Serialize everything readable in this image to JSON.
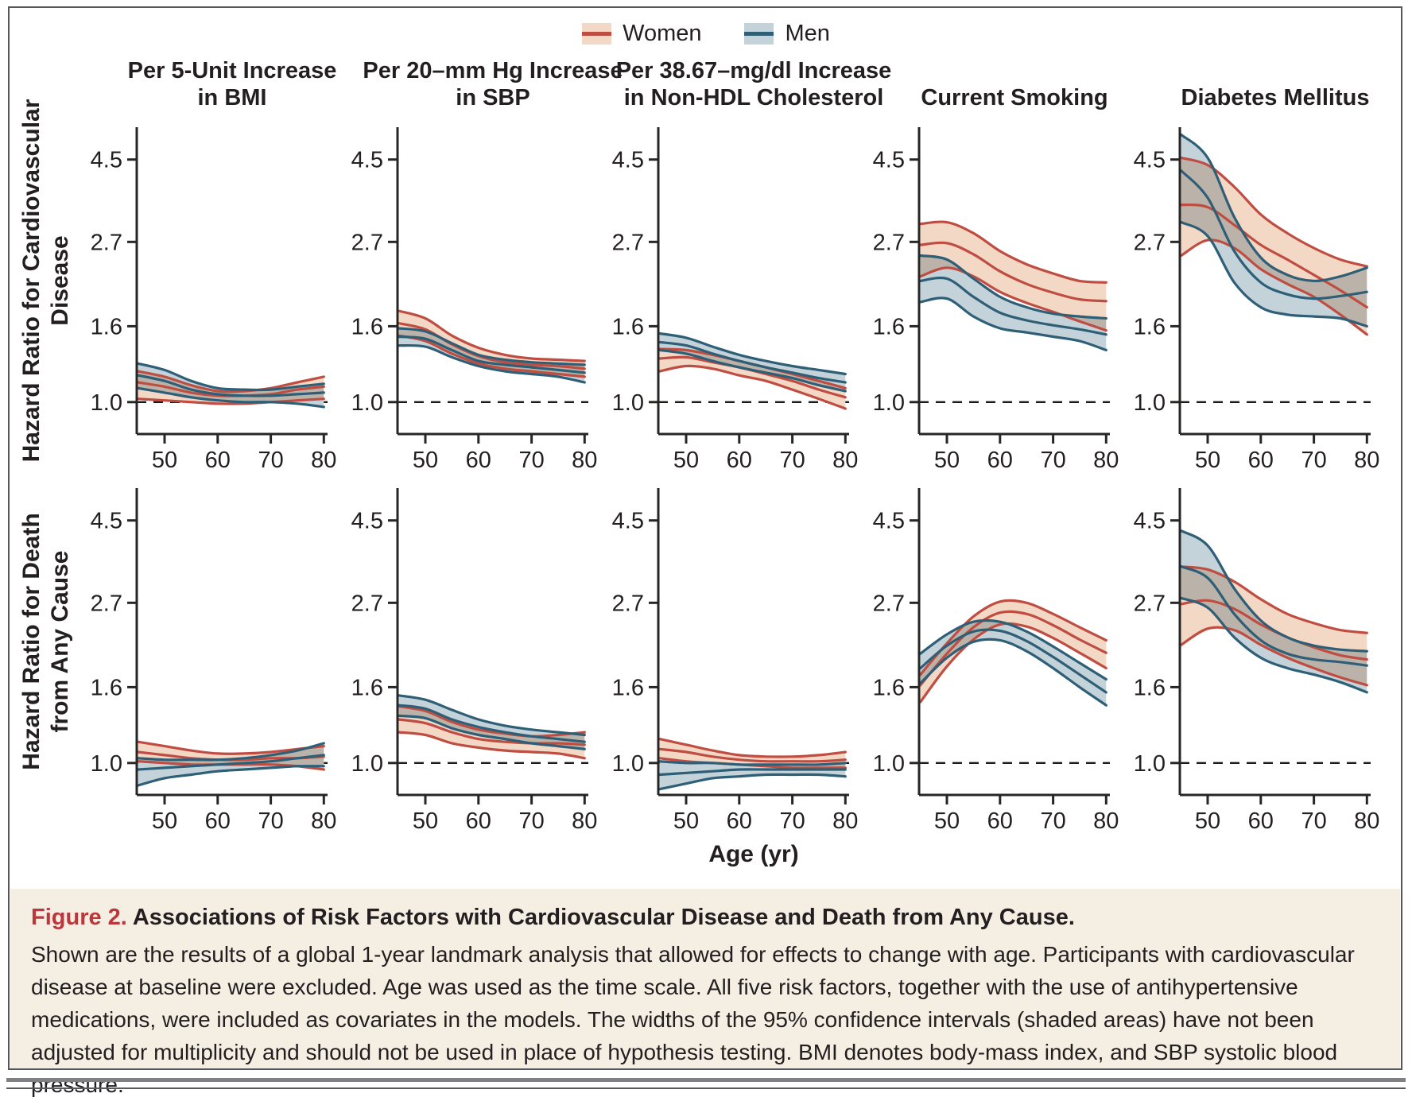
{
  "legend": {
    "women": "Women",
    "men": "Men"
  },
  "colors": {
    "women_line": "#bf4d42",
    "women_fill": "#f3d8c6",
    "men_line": "#2e5f77",
    "men_fill": "#c4d3da",
    "reference_dash": "#1a1a18",
    "axis": "#262624",
    "text": "#231f20",
    "caption_bg": "#f4eee3",
    "figure_label_red": "#bb373c",
    "frame_gray": "#55565a"
  },
  "columns": [
    {
      "line1": "Per 5-Unit Increase",
      "line2": "in BMI"
    },
    {
      "line1": "Per 20–mm Hg Increase",
      "line2": "in SBP"
    },
    {
      "line1": "Per 38.67–mg/dl Increase",
      "line2": "in Non-HDL Cholesterol"
    },
    {
      "line1": "Current Smoking",
      "line2": ""
    },
    {
      "line1": "Diabetes Mellitus",
      "line2": ""
    }
  ],
  "rows": [
    {
      "line1": "Hazard Ratio for Cardiovascular",
      "line2": "Disease"
    },
    {
      "line1": "Hazard Ratio for Death",
      "line2": "from Any Cause"
    }
  ],
  "axis": {
    "xlabel": "Age (yr)",
    "xticks": [
      50,
      60,
      70,
      80
    ],
    "ytick_labels": [
      "1.0",
      "1.6",
      "2.7",
      "4.5"
    ],
    "ytick_values": [
      1.0,
      1.6,
      2.7,
      4.5
    ],
    "scale": "log",
    "ylim": [
      0.82,
      5.5
    ],
    "xlim": [
      44.75,
      80.7
    ],
    "reference_line": 1.0
  },
  "chart_data": [
    {
      "type": "area",
      "risk_factor": "Per 5-Unit Increase in BMI",
      "outcome": "Hazard Ratio for Cardiovascular Disease",
      "x": [
        45,
        50,
        55,
        60,
        65,
        70,
        75,
        80
      ],
      "series": [
        {
          "name": "Women",
          "center": [
            1.13,
            1.1,
            1.06,
            1.04,
            1.04,
            1.05,
            1.08,
            1.1
          ],
          "upper": [
            1.21,
            1.17,
            1.11,
            1.07,
            1.07,
            1.09,
            1.13,
            1.17
          ],
          "lower": [
            1.02,
            1.01,
            1.0,
            0.99,
            0.99,
            1.0,
            1.01,
            1.02
          ]
        },
        {
          "name": "Men",
          "center": [
            1.18,
            1.14,
            1.08,
            1.05,
            1.04,
            1.04,
            1.05,
            1.06
          ],
          "upper": [
            1.27,
            1.22,
            1.14,
            1.09,
            1.08,
            1.08,
            1.1,
            1.12
          ],
          "lower": [
            1.09,
            1.06,
            1.03,
            1.01,
            1.0,
            1.0,
            0.99,
            0.97
          ]
        }
      ]
    },
    {
      "type": "area",
      "risk_factor": "Per 20–mm Hg Increase in SBP",
      "outcome": "Hazard Ratio for Cardiovascular Disease",
      "x": [
        45,
        50,
        55,
        60,
        65,
        70,
        75,
        80
      ],
      "series": [
        {
          "name": "Women",
          "center": [
            1.63,
            1.57,
            1.43,
            1.33,
            1.28,
            1.26,
            1.25,
            1.23
          ],
          "upper": [
            1.76,
            1.68,
            1.51,
            1.4,
            1.34,
            1.31,
            1.3,
            1.29
          ],
          "lower": [
            1.51,
            1.46,
            1.35,
            1.27,
            1.23,
            1.21,
            1.19,
            1.17
          ]
        },
        {
          "name": "Men",
          "center": [
            1.5,
            1.48,
            1.38,
            1.29,
            1.26,
            1.24,
            1.22,
            1.2
          ],
          "upper": [
            1.58,
            1.55,
            1.44,
            1.34,
            1.3,
            1.28,
            1.27,
            1.26
          ],
          "lower": [
            1.42,
            1.41,
            1.32,
            1.25,
            1.21,
            1.19,
            1.17,
            1.13
          ]
        }
      ]
    },
    {
      "type": "area",
      "risk_factor": "Per 38.67–mg/dl Increase in Non-HDL Cholesterol",
      "outcome": "Hazard Ratio for Cardiovascular Disease",
      "x": [
        45,
        50,
        55,
        60,
        65,
        70,
        75,
        80
      ],
      "series": [
        {
          "name": "Women",
          "center": [
            1.31,
            1.32,
            1.28,
            1.24,
            1.19,
            1.14,
            1.08,
            1.03
          ],
          "upper": [
            1.39,
            1.38,
            1.34,
            1.29,
            1.24,
            1.19,
            1.14,
            1.09
          ],
          "lower": [
            1.21,
            1.25,
            1.23,
            1.18,
            1.14,
            1.08,
            1.02,
            0.96
          ]
        },
        {
          "name": "Men",
          "center": [
            1.45,
            1.42,
            1.35,
            1.29,
            1.24,
            1.2,
            1.16,
            1.13
          ],
          "upper": [
            1.53,
            1.49,
            1.41,
            1.34,
            1.29,
            1.25,
            1.22,
            1.19
          ],
          "lower": [
            1.38,
            1.35,
            1.29,
            1.24,
            1.2,
            1.16,
            1.11,
            1.07
          ]
        }
      ]
    },
    {
      "type": "area",
      "risk_factor": "Current Smoking",
      "outcome": "Hazard Ratio for Cardiovascular Disease",
      "x": [
        45,
        50,
        55,
        60,
        65,
        70,
        75,
        80
      ],
      "series": [
        {
          "name": "Women",
          "center": [
            2.65,
            2.68,
            2.5,
            2.25,
            2.08,
            1.97,
            1.89,
            1.87
          ],
          "upper": [
            3.02,
            3.05,
            2.85,
            2.55,
            2.35,
            2.22,
            2.12,
            2.1
          ],
          "lower": [
            2.18,
            2.3,
            2.18,
            1.98,
            1.85,
            1.75,
            1.65,
            1.56
          ]
        },
        {
          "name": "Men",
          "center": [
            2.12,
            2.15,
            1.92,
            1.74,
            1.66,
            1.61,
            1.57,
            1.52
          ],
          "upper": [
            2.48,
            2.42,
            2.15,
            1.92,
            1.8,
            1.73,
            1.7,
            1.68
          ],
          "lower": [
            1.86,
            1.9,
            1.7,
            1.58,
            1.54,
            1.5,
            1.46,
            1.38
          ]
        }
      ]
    },
    {
      "type": "area",
      "risk_factor": "Diabetes Mellitus",
      "outcome": "Hazard Ratio for Cardiovascular Disease",
      "x": [
        45,
        50,
        55,
        60,
        65,
        70,
        75,
        80
      ],
      "series": [
        {
          "name": "Women",
          "center": [
            3.4,
            3.35,
            3.0,
            2.65,
            2.42,
            2.2,
            2.0,
            1.8
          ],
          "upper": [
            4.55,
            4.35,
            3.8,
            3.2,
            2.85,
            2.6,
            2.42,
            2.32
          ],
          "lower": [
            2.48,
            2.73,
            2.6,
            2.28,
            2.08,
            1.92,
            1.72,
            1.52
          ]
        },
        {
          "name": "Men",
          "center": [
            4.2,
            3.55,
            2.55,
            2.1,
            1.95,
            1.9,
            1.93,
            1.98
          ],
          "upper": [
            5.25,
            4.55,
            3.15,
            2.45,
            2.2,
            2.12,
            2.18,
            2.3
          ],
          "lower": [
            3.05,
            2.8,
            2.1,
            1.8,
            1.72,
            1.7,
            1.68,
            1.6
          ]
        }
      ]
    },
    {
      "type": "area",
      "risk_factor": "Per 5-Unit Increase in BMI",
      "outcome": "Hazard Ratio for Death from Any Cause",
      "x": [
        45,
        50,
        55,
        60,
        65,
        70,
        75,
        80
      ],
      "series": [
        {
          "name": "Women",
          "center": [
            1.07,
            1.05,
            1.03,
            1.02,
            1.02,
            1.03,
            1.03,
            1.04
          ],
          "upper": [
            1.14,
            1.11,
            1.08,
            1.06,
            1.06,
            1.07,
            1.09,
            1.11
          ],
          "lower": [
            1.01,
            1.0,
            0.99,
            0.99,
            0.99,
            0.99,
            0.98,
            0.96
          ]
        },
        {
          "name": "Men",
          "center": [
            0.96,
            0.97,
            0.98,
            0.99,
            1.0,
            1.01,
            1.03,
            1.05
          ],
          "upper": [
            1.03,
            1.02,
            1.02,
            1.02,
            1.03,
            1.05,
            1.08,
            1.13
          ],
          "lower": [
            0.87,
            0.91,
            0.93,
            0.95,
            0.96,
            0.97,
            0.98,
            0.98
          ]
        }
      ]
    },
    {
      "type": "area",
      "risk_factor": "Per 20–mm Hg Increase in SBP",
      "outcome": "Hazard Ratio for Death from Any Cause",
      "x": [
        45,
        50,
        55,
        60,
        65,
        70,
        75,
        80
      ],
      "series": [
        {
          "name": "Women",
          "center": [
            1.31,
            1.28,
            1.21,
            1.16,
            1.14,
            1.13,
            1.13,
            1.12
          ],
          "upper": [
            1.42,
            1.38,
            1.29,
            1.23,
            1.2,
            1.18,
            1.19,
            1.21
          ],
          "lower": [
            1.21,
            1.19,
            1.13,
            1.1,
            1.08,
            1.07,
            1.06,
            1.03
          ]
        },
        {
          "name": "Men",
          "center": [
            1.43,
            1.4,
            1.31,
            1.25,
            1.21,
            1.18,
            1.16,
            1.14
          ],
          "upper": [
            1.52,
            1.48,
            1.39,
            1.31,
            1.26,
            1.23,
            1.21,
            1.19
          ],
          "lower": [
            1.34,
            1.32,
            1.24,
            1.19,
            1.16,
            1.13,
            1.11,
            1.09
          ]
        }
      ]
    },
    {
      "type": "area",
      "risk_factor": "Per 38.67–mg/dl Increase in Non-HDL Cholesterol",
      "outcome": "Hazard Ratio for Death from Any Cause",
      "x": [
        45,
        50,
        55,
        60,
        65,
        70,
        75,
        80
      ],
      "series": [
        {
          "name": "Women",
          "center": [
            1.09,
            1.07,
            1.04,
            1.02,
            1.01,
            1.01,
            1.01,
            1.02
          ],
          "upper": [
            1.16,
            1.12,
            1.08,
            1.05,
            1.04,
            1.04,
            1.05,
            1.07
          ],
          "lower": [
            1.03,
            1.01,
            1.0,
            0.99,
            0.98,
            0.97,
            0.97,
            0.97
          ]
        },
        {
          "name": "Men",
          "center": [
            0.93,
            0.94,
            0.95,
            0.96,
            0.96,
            0.96,
            0.96,
            0.96
          ],
          "upper": [
            1.01,
            1.0,
            1.0,
            0.99,
            0.99,
            0.99,
            0.99,
            1.0
          ],
          "lower": [
            0.85,
            0.88,
            0.91,
            0.92,
            0.93,
            0.93,
            0.93,
            0.92
          ]
        }
      ]
    },
    {
      "type": "area",
      "risk_factor": "Current Smoking",
      "outcome": "Hazard Ratio for Death from Any Cause",
      "x": [
        45,
        50,
        55,
        60,
        65,
        70,
        75,
        80
      ],
      "series": [
        {
          "name": "Women",
          "center": [
            1.62,
            1.97,
            2.32,
            2.54,
            2.52,
            2.35,
            2.15,
            1.98
          ],
          "upper": [
            1.73,
            2.1,
            2.48,
            2.72,
            2.7,
            2.52,
            2.32,
            2.14
          ],
          "lower": [
            1.46,
            1.82,
            2.15,
            2.36,
            2.33,
            2.17,
            1.98,
            1.8
          ]
        },
        {
          "name": "Men",
          "center": [
            1.8,
            2.07,
            2.26,
            2.27,
            2.13,
            1.93,
            1.73,
            1.55
          ],
          "upper": [
            1.97,
            2.22,
            2.4,
            2.4,
            2.26,
            2.06,
            1.86,
            1.68
          ],
          "lower": [
            1.64,
            1.92,
            2.12,
            2.14,
            2.0,
            1.8,
            1.6,
            1.43
          ]
        }
      ]
    },
    {
      "type": "area",
      "risk_factor": "Diabetes Mellitus",
      "outcome": "Hazard Ratio for Death from Any Cause",
      "x": [
        45,
        50,
        55,
        60,
        65,
        70,
        75,
        80
      ],
      "series": [
        {
          "name": "Women",
          "center": [
            2.68,
            2.74,
            2.6,
            2.36,
            2.18,
            2.05,
            1.95,
            1.9
          ],
          "upper": [
            3.38,
            3.32,
            3.08,
            2.76,
            2.52,
            2.38,
            2.28,
            2.24
          ],
          "lower": [
            2.08,
            2.3,
            2.28,
            2.08,
            1.92,
            1.8,
            1.7,
            1.62
          ]
        },
        {
          "name": "Men",
          "center": [
            3.38,
            3.15,
            2.52,
            2.14,
            1.97,
            1.9,
            1.87,
            1.83
          ],
          "upper": [
            4.22,
            3.85,
            2.95,
            2.42,
            2.18,
            2.07,
            2.02,
            2.0
          ],
          "lower": [
            2.78,
            2.62,
            2.18,
            1.92,
            1.8,
            1.73,
            1.65,
            1.55
          ]
        }
      ]
    }
  ],
  "caption": {
    "label": "Figure 2.",
    "title": "Associations of Risk Factors with Cardiovascular Disease and Death from Any Cause.",
    "body": "Shown are the results of a global 1-year landmark analysis that allowed for effects to change with age. Participants with cardiovascular disease at baseline were excluded. Age was used as the time scale. All five risk factors, together with the use of antihypertensive medications, were included as covariates in the models. The widths of the 95% confidence intervals (shaded areas) have not been adjusted for multiplicity and should not be used in place of hypothesis testing. BMI denotes body-mass index, and SBP systolic blood pressure."
  }
}
